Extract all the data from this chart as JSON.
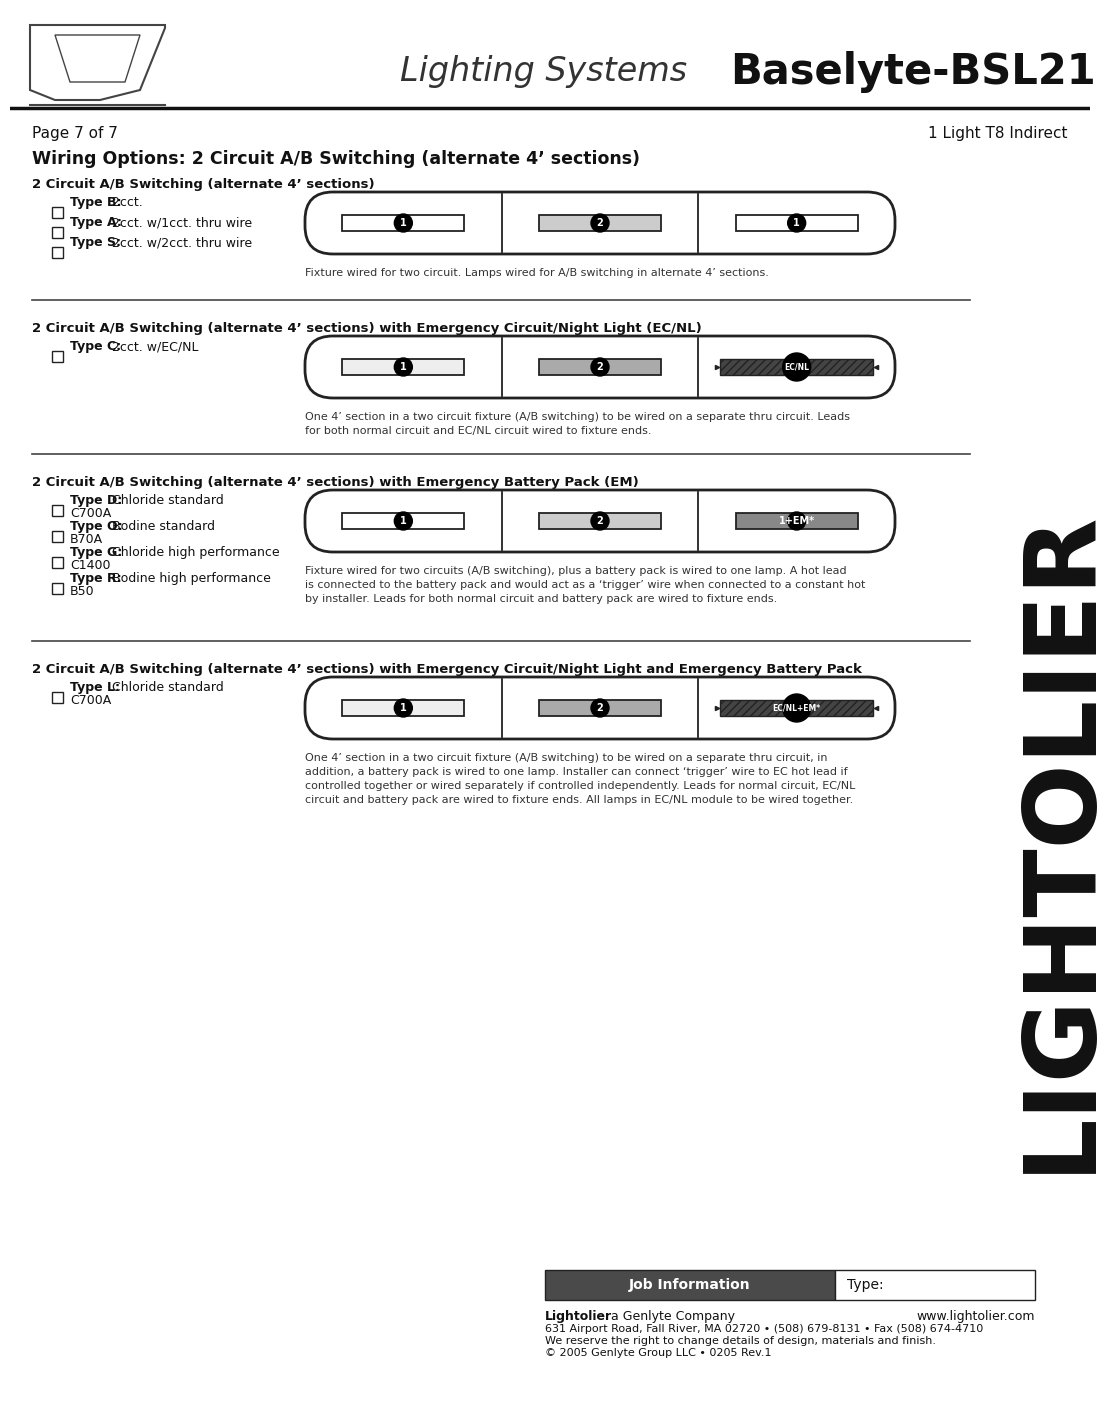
{
  "title_light": "Lighting Systems ",
  "title_bold": "Baselyte-BSL21",
  "page_info": "Page 7 of 7",
  "right_info": "1 Light T8 Indirect",
  "main_title": "Wiring Options: 2 Circuit A/B Switching (alternate 4’ sections)",
  "section1_title": "2 Circuit A/B Switching (alternate 4’ sections)",
  "section1_types": [
    {
      "bold": "Type B:",
      "normal": " 2cct."
    },
    {
      "bold": "Type A:",
      "normal": " 2cct. w/1cct. thru wire"
    },
    {
      "bold": "Type S:",
      "normal": " 2cct. w/2cct. thru wire"
    }
  ],
  "section1_caption": "Fixture wired for two circuit. Lamps wired for A/B switching in alternate 4’ sections.",
  "section2_title": "2 Circuit A/B Switching (alternate 4’ sections) with Emergency Circuit/Night Light (EC/NL)",
  "section2_types": [
    {
      "bold": "Type C:",
      "normal": " 2cct. w/EC/NL"
    }
  ],
  "section2_caption": "One 4’ section in a two circuit fixture (A/B switching) to be wired on a separate thru circuit. Leads\nfor both normal circuit and EC/NL circuit wired to fixture ends.",
  "section3_title": "2 Circuit A/B Switching (alternate 4’ sections) with Emergency Battery Pack (EM)",
  "section3_types": [
    {
      "bold": "Type D:",
      "normal": " Chloride standard",
      "sub": "C700A"
    },
    {
      "bold": "Type O:",
      "normal": " Bodine standard",
      "sub": "B70A"
    },
    {
      "bold": "Type G:",
      "normal": " Chloride high performance",
      "sub": "C1400"
    },
    {
      "bold": "Type R:",
      "normal": " Bodine high performance",
      "sub": "B50"
    }
  ],
  "section3_caption": "Fixture wired for two circuits (A/B switching), plus a battery pack is wired to one lamp. A hot lead\nis connected to the battery pack and would act as a ‘trigger’ wire when connected to a constant hot\nby installer. Leads for both normal circuit and battery pack are wired to fixture ends.",
  "section4_title": "2 Circuit A/B Switching (alternate 4’ sections) with Emergency Circuit/Night Light and Emergency Battery Pack",
  "section4_types": [
    {
      "bold": "Type L:",
      "normal": " Chloride standard",
      "sub": "C700A"
    }
  ],
  "section4_caption": "One 4’ section in a two circuit fixture (A/B switching) to be wired on a separate thru circuit, in\naddition, a battery pack is wired to one lamp. Installer can connect ‘trigger’ wire to EC hot lead if\ncontrolled together or wired separately if controlled independently. Leads for normal circuit, EC/NL\ncircuit and battery pack are wired to fixture ends. All lamps in EC/NL module to be wired together.",
  "footer_job": "Job Information",
  "footer_type": "Type:",
  "footer_company": "Lightolier",
  "footer_company_rest": " a Genlyte Company",
  "footer_website": "www.lightolier.com",
  "footer_address": "631 Airport Road, Fall River, MA 02720 • (508) 679-8131 • Fax (508) 674-4710",
  "footer_rights": "We reserve the right to change details of design, materials and finish.",
  "footer_copy": "© 2005 Genlyte Group LLC • 0205 Rev.1",
  "bg_color": "#ffffff",
  "lightolier_text": "LIGHTOLIER"
}
